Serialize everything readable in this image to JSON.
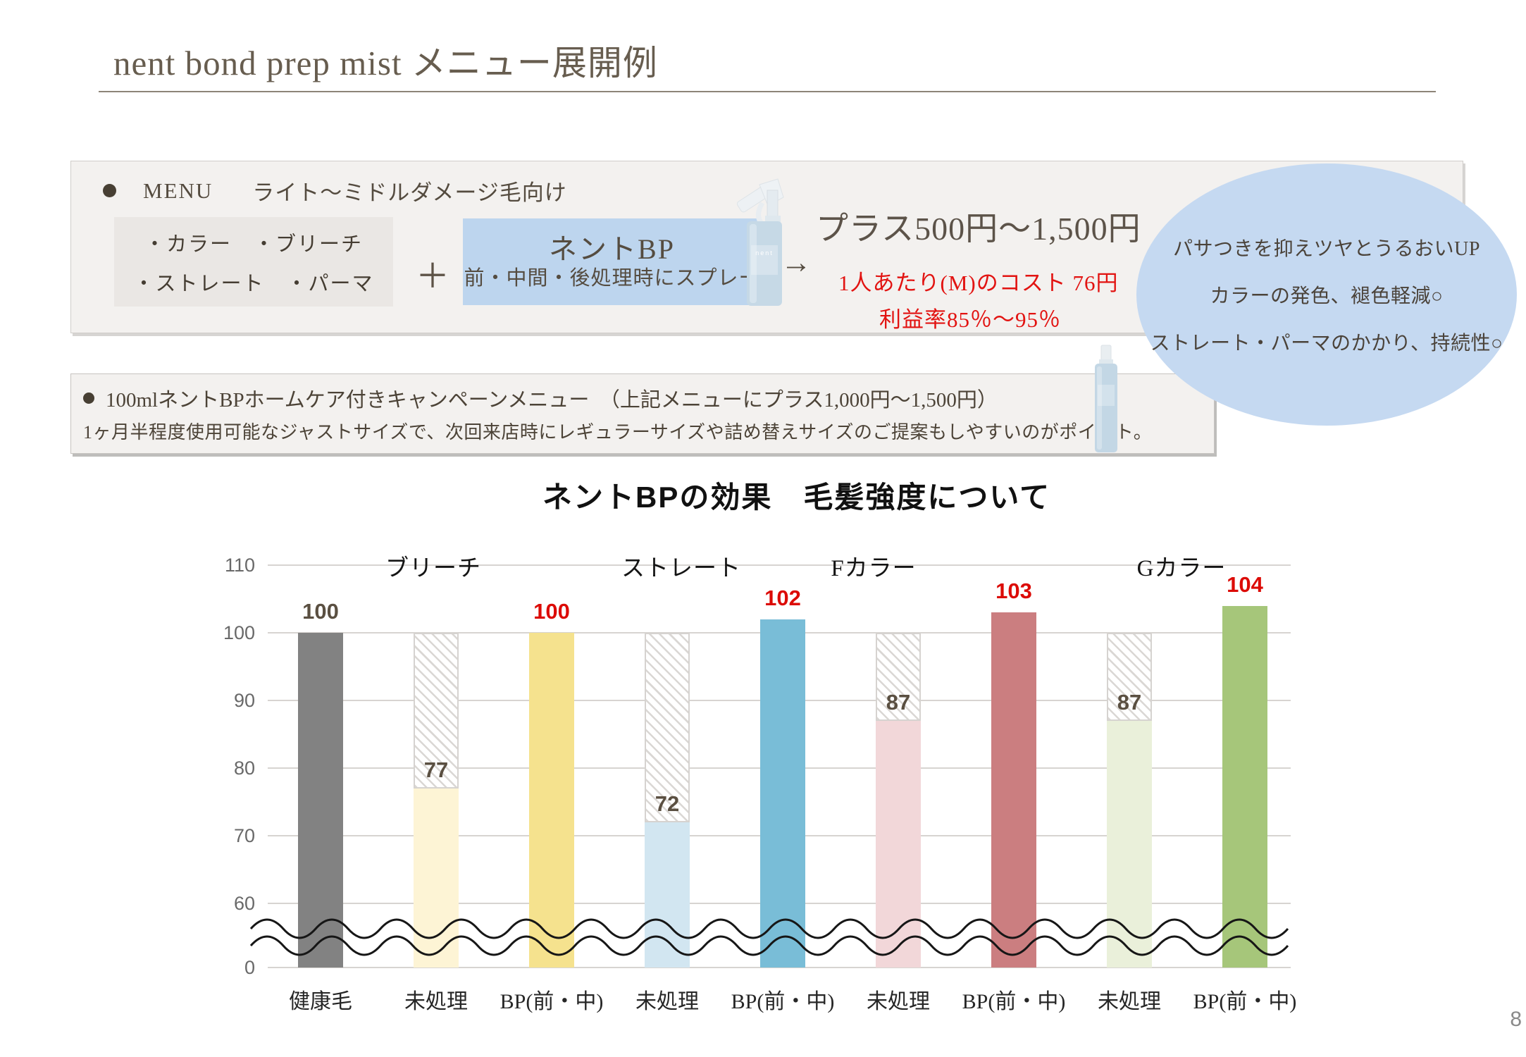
{
  "slide": {
    "title": "nent bond prep mist メニュー展開例",
    "page_number": "8"
  },
  "menu_box": {
    "bullet": "●",
    "heading": "MENU",
    "heading_note": "ライト～ミドルダメージ毛向け",
    "services": [
      "・カラー　・ブリーチ",
      "・ストレート　・パーマ"
    ],
    "plus": "＋",
    "product_name": "ネントBP",
    "product_usage": "前・中間・後処理時にスプレー",
    "arrow": "→",
    "price_range": "プラス500円～1,500円",
    "cost_line": "1人あたり(M)のコスト 76円",
    "profit_line": "利益率85％～95％"
  },
  "benefit_bubble": {
    "lines": [
      "パサつきを抑えツヤとうるおいUP",
      "カラーの発色、褪色軽減○",
      "ストレート・パーマのかかり、持続性○"
    ]
  },
  "campaign_box": {
    "bullet": "●",
    "line1": "100mlネントBPホームケア付きキャンペーンメニュー　（上記メニューにプラス1,000円～1,500円）",
    "line2": "1ヶ月半程度使用可能なジャストサイズで、次回来店時にレギュラーサイズや詰め替えサイズのご提案もしやすいのがポイント。"
  },
  "chart_data": {
    "type": "bar",
    "title": "ネントBPの効果　毛髪強度について",
    "xlabel": "",
    "ylabel": "",
    "ylim": [
      0,
      110
    ],
    "yticks": [
      110,
      100,
      90,
      80,
      70,
      60,
      0
    ],
    "axis_break_between": [
      0,
      60
    ],
    "grid": true,
    "legend_position": "none",
    "group_labels": [
      "ブリーチ",
      "ストレート",
      "Fカラー",
      "Gカラー"
    ],
    "hatch_note": "未処理 bars are hatched from their value up to 100 (strength lost)",
    "bars": [
      {
        "category": "健康毛",
        "group": "",
        "value": 100,
        "bar_color": "#828282",
        "label_color": "#5a4f41",
        "hatched_top": false
      },
      {
        "category": "未処理",
        "group": "ブリーチ",
        "value": 77,
        "bar_color": "#fdf4d5",
        "label_color": "#5a4f41",
        "hatched_top": true
      },
      {
        "category": "BP(前・中)",
        "group": "ブリーチ",
        "value": 100,
        "bar_color": "#f5e28e",
        "label_color": "#dc0b06",
        "hatched_top": false
      },
      {
        "category": "未処理",
        "group": "ストレート",
        "value": 72,
        "bar_color": "#d2e6f1",
        "label_color": "#5a4f41",
        "hatched_top": true
      },
      {
        "category": "BP(前・中)",
        "group": "ストレート",
        "value": 102,
        "bar_color": "#79bdd7",
        "label_color": "#dc0b06",
        "hatched_top": false
      },
      {
        "category": "未処理",
        "group": "Fカラー",
        "value": 87,
        "bar_color": "#f2d7d9",
        "label_color": "#5a4f41",
        "hatched_top": true
      },
      {
        "category": "BP(前・中)",
        "group": "Fカラー",
        "value": 103,
        "bar_color": "#cb7e80",
        "label_color": "#dc0b06",
        "hatched_top": false
      },
      {
        "category": "未処理",
        "group": "Gカラー",
        "value": 87,
        "bar_color": "#eaf0da",
        "label_color": "#5a4f41",
        "hatched_top": true
      },
      {
        "category": "BP(前・中)",
        "group": "Gカラー",
        "value": 104,
        "bar_color": "#a6c67a",
        "label_color": "#dc0b06",
        "hatched_top": false
      }
    ]
  }
}
